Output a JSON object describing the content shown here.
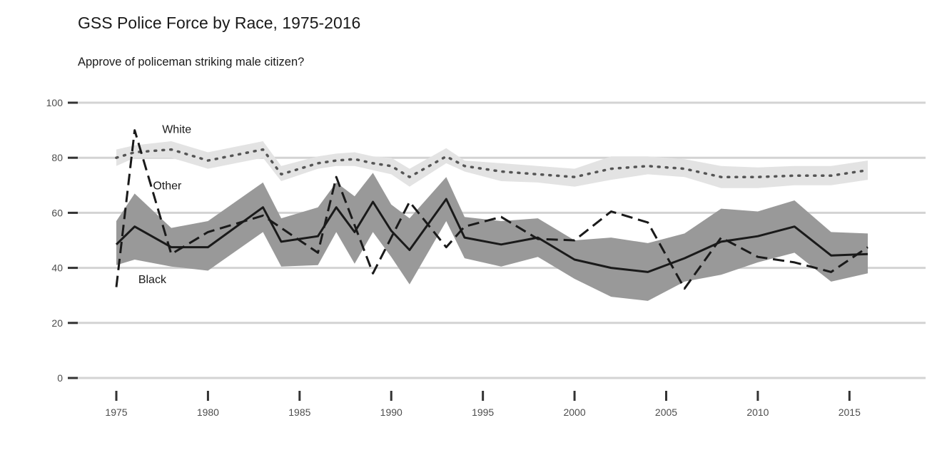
{
  "chart_data": {
    "type": "line",
    "title": "GSS Police Force by Race, 1975-2016",
    "subtitle": "Approve of policeman striking male citizen?",
    "xlabel": "",
    "ylabel": "",
    "xlim": [
      1975,
      2016
    ],
    "ylim": [
      0,
      100
    ],
    "x_ticks": [
      1975,
      1980,
      1985,
      1990,
      1995,
      2000,
      2005,
      2010,
      2015
    ],
    "y_ticks": [
      0,
      20,
      40,
      60,
      80,
      100
    ],
    "grid": "horizontal",
    "legend": "direct labels",
    "x": [
      1975,
      1976,
      1978,
      1980,
      1983,
      1984,
      1986,
      1987,
      1988,
      1989,
      1990,
      1991,
      1993,
      1994,
      1996,
      1998,
      2000,
      2002,
      2004,
      2006,
      2008,
      2010,
      2012,
      2014,
      2016
    ],
    "series": [
      {
        "name": "White",
        "style": "dotted",
        "color": "#555555",
        "band_color": "#e3e3e3",
        "values": [
          80,
          82,
          83,
          79,
          83,
          74,
          78,
          79,
          79.5,
          78,
          77,
          73,
          80.5,
          77,
          75,
          74,
          73,
          76,
          77,
          76,
          73,
          73,
          73.5,
          73.5,
          75.5
        ],
        "lower": [
          77,
          80,
          80,
          76,
          80,
          71.5,
          76,
          77,
          77,
          75.5,
          74,
          69.5,
          78,
          75,
          71.5,
          71,
          69.5,
          72,
          74,
          73,
          69,
          69,
          70,
          70,
          72
        ],
        "upper": [
          83,
          84.5,
          86,
          82,
          86,
          77,
          80.5,
          81.5,
          82,
          80.5,
          80,
          76,
          83.5,
          79,
          78,
          77,
          76,
          80.5,
          80.5,
          79.5,
          77,
          76.5,
          77,
          77,
          79
        ]
      },
      {
        "name": "Black",
        "style": "solid",
        "color": "#1a1a1a",
        "band_color": "#999999",
        "values": [
          48.5,
          55,
          47.5,
          47.5,
          62,
          49.5,
          51.5,
          62,
          53,
          64,
          53.5,
          46.5,
          65,
          51,
          48.5,
          51,
          43,
          40,
          38.5,
          43.5,
          49.5,
          51.5,
          55,
          44.5,
          45
        ],
        "lower": [
          41,
          43,
          40.5,
          39,
          53,
          40.5,
          41,
          53,
          41.5,
          53,
          44,
          34,
          57,
          43.5,
          40.5,
          44,
          36,
          29.5,
          28,
          35,
          37.5,
          42,
          45.5,
          35,
          38
        ],
        "upper": [
          57,
          67,
          54.5,
          57,
          71,
          58,
          62,
          71,
          66,
          74.5,
          63,
          58,
          73,
          58.5,
          57,
          58,
          50,
          51,
          49,
          52.5,
          61.5,
          60.5,
          64.5,
          53,
          52.5
        ]
      },
      {
        "name": "Other",
        "style": "dashed",
        "color": "#1a1a1a",
        "x": [
          1975,
          1976,
          1978,
          1980,
          1983,
          1986,
          1987,
          1989,
          1991,
          1993,
          1994,
          1996,
          1998,
          2000,
          2002,
          2004,
          2006,
          2008,
          2010,
          2012,
          2014,
          2016
        ],
        "values": [
          33,
          90,
          45,
          53,
          59,
          45.5,
          73,
          38,
          64,
          47.5,
          55,
          58.5,
          50.5,
          50,
          60.5,
          56.5,
          32.5,
          51,
          44,
          42,
          38.5,
          47.5
        ]
      }
    ],
    "labels": [
      {
        "text": "White",
        "x": 1977.5,
        "y": 89
      },
      {
        "text": "Other",
        "x": 1977,
        "y": 68.5
      },
      {
        "text": "Black",
        "x": 1976.2,
        "y": 34.5
      }
    ]
  }
}
